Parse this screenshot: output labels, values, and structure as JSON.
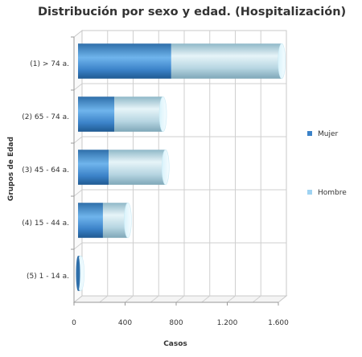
{
  "chart_data": {
    "type": "bar",
    "orientation": "horizontal",
    "stacked": true,
    "style": "3d-cylinder",
    "title": "Distribución por sexo y edad. (Hospitalización)",
    "xlabel": "Casos",
    "ylabel": "Grupos de Edad",
    "categories": [
      "(1) > 74 a.",
      "(2) 65 - 74 a.",
      "(3) 45 - 64 a.",
      "(4) 15 - 44 a.",
      "(5) 1 - 14 a."
    ],
    "series": [
      {
        "name": "Mujer",
        "values": [
          730,
          285,
          240,
          195,
          10
        ],
        "color": "#3b82c8"
      },
      {
        "name": "Hombre",
        "values": [
          865,
          380,
          445,
          195,
          10
        ],
        "color": "#9fd3f2"
      }
    ],
    "xlim": [
      0,
      1600
    ],
    "xticks": [
      0,
      400,
      800,
      1200,
      1600
    ],
    "xtick_labels": [
      "0",
      "400",
      "800",
      "1.200",
      "1.600"
    ],
    "grid": true,
    "legend_position": "right"
  }
}
